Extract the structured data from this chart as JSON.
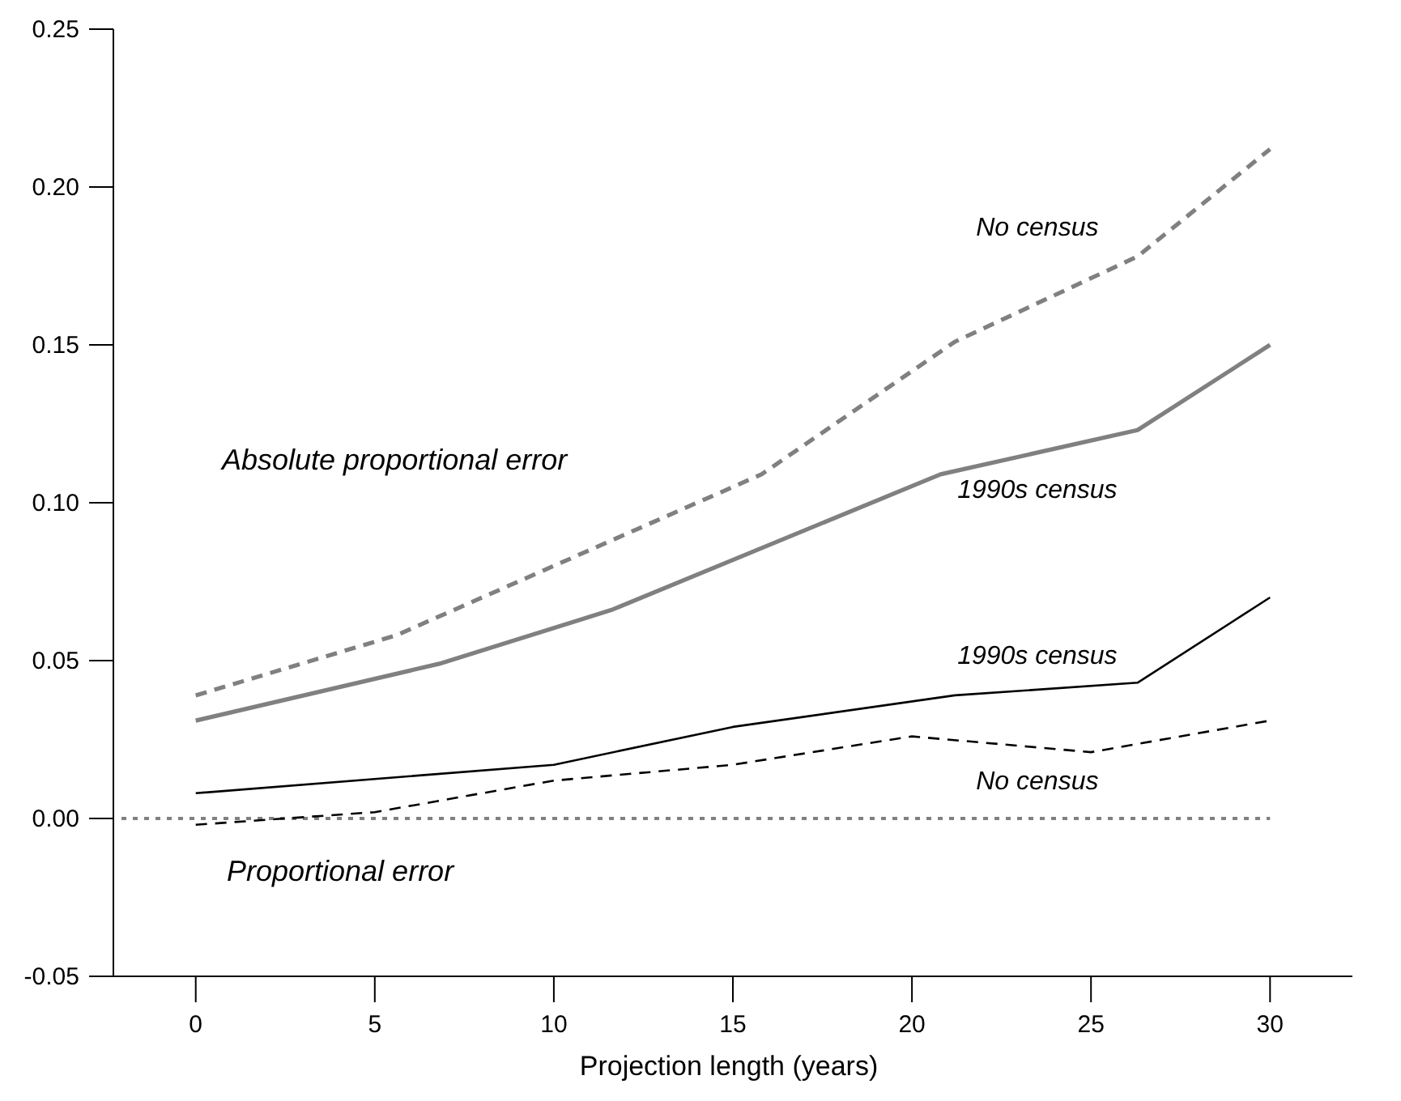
{
  "chart_data": {
    "type": "line",
    "xlabel": "Projection length (years)",
    "xlim": [
      -2.3,
      32.3
    ],
    "ylim": [
      -0.05,
      0.25
    ],
    "xticks": [
      0,
      5,
      10,
      15,
      20,
      25,
      30
    ],
    "yticks": [
      {
        "value": -0.05,
        "label": "-0.05"
      },
      {
        "value": 0,
        "label": "0.00"
      },
      {
        "value": 0.05,
        "label": "0.05"
      },
      {
        "value": 0.1,
        "label": "0.10"
      },
      {
        "value": 0.15,
        "label": "0.15"
      },
      {
        "value": 0.2,
        "label": "0.20"
      },
      {
        "value": 0.25,
        "label": "0.25"
      }
    ],
    "grid": false,
    "series": [
      {
        "name": "No census",
        "color": "#808080",
        "line_style": "dashed",
        "x": [
          0,
          5.6,
          15.8,
          21.2,
          26.3,
          30
        ],
        "values": [
          0.039,
          0.058,
          0.109,
          0.151,
          0.178,
          0.212
        ]
      },
      {
        "name": "1990s census",
        "color": "#808080",
        "line_style": "solid",
        "x": [
          0,
          6.8,
          11.6,
          20.8,
          26.3,
          30
        ],
        "values": [
          0.031,
          0.049,
          0.066,
          0.109,
          0.123,
          0.15
        ]
      },
      {
        "name": "1990s census",
        "color": "#000000",
        "line_style": "solid",
        "x": [
          0,
          10,
          15,
          21.2,
          26.3,
          30
        ],
        "values": [
          0.008,
          0.017,
          0.029,
          0.039,
          0.043,
          0.07
        ]
      },
      {
        "name": "No census",
        "color": "#000000",
        "line_style": "dashed",
        "x": [
          0,
          5,
          10,
          15,
          20,
          25,
          30
        ],
        "values": [
          -0.002,
          0.002,
          0.012,
          0.017,
          0.026,
          0.021,
          0.031
        ]
      }
    ],
    "ref_lines": [
      {
        "axis": "y",
        "value": 0,
        "color": "#808080",
        "line_style": "dotted"
      }
    ],
    "annotations": [
      "Absolute proportional error",
      "Proportional error"
    ]
  }
}
